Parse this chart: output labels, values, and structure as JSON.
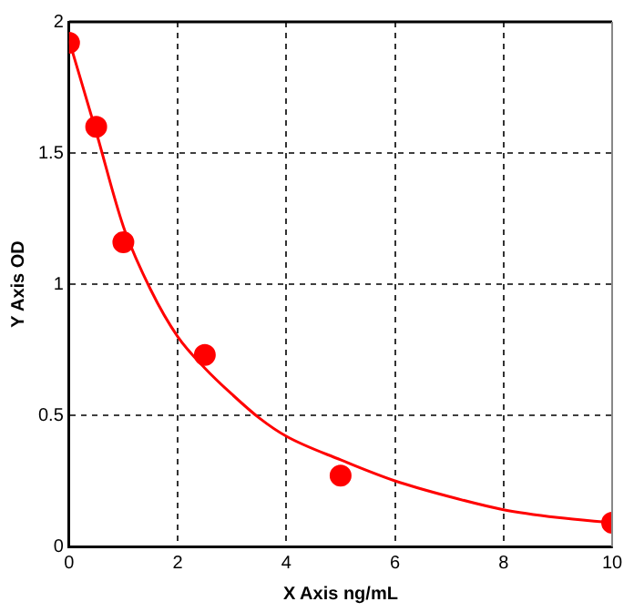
{
  "chart_data": {
    "type": "scatter",
    "xlabel": "X Axis ng/mL",
    "ylabel": "Y Axis OD",
    "series": [
      {
        "type": "scatter",
        "color": "#ff0000",
        "x": [
          0,
          0.5,
          1,
          2.5,
          5,
          10
        ],
        "values": [
          1.92,
          1.6,
          1.16,
          0.73,
          0.27,
          0.09
        ],
        "marker": "circle"
      },
      {
        "type": "line",
        "color": "#ff0000",
        "x": [
          0,
          0.5,
          1,
          1.5,
          2,
          2.5,
          3,
          3.5,
          4,
          5,
          6,
          7,
          8,
          9,
          10
        ],
        "values": [
          1.93,
          1.58,
          1.22,
          0.98,
          0.8,
          0.68,
          0.58,
          0.49,
          0.42,
          0.33,
          0.25,
          0.19,
          0.14,
          0.11,
          0.09
        ],
        "line_style": "solid",
        "marker": "none"
      }
    ],
    "xlim": [
      0,
      10
    ],
    "xticks": [
      0,
      2,
      4,
      6,
      8,
      10
    ],
    "ylim": [
      0,
      2
    ],
    "yticks": [
      0,
      0.5,
      1,
      1.5,
      2
    ],
    "grid": true,
    "legend": false
  }
}
